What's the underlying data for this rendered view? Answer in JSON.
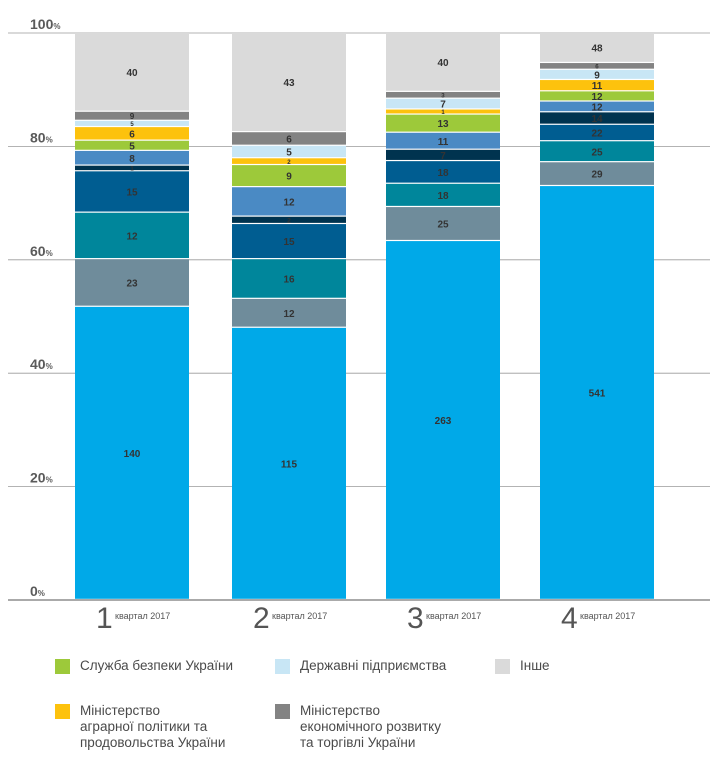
{
  "chart_data": {
    "type": "bar",
    "stacked": true,
    "categories": [
      "1",
      "2",
      "3",
      "4"
    ],
    "category_suffix": "квартал 2017",
    "yticks": [
      "0",
      "20",
      "40",
      "60",
      "80",
      "100"
    ],
    "ytick_suffix": "%",
    "ylim": [
      0,
      100
    ],
    "grid": true,
    "columns": [
      {
        "segments": [
          {
            "value": 140,
            "share": 51.7,
            "color": "#00a9e8"
          },
          {
            "value": 23,
            "share": 8.4,
            "color": "#6f8c9b"
          },
          {
            "value": 12,
            "share": 8.2,
            "color": "#00869b"
          },
          {
            "value": 15,
            "share": 7.3,
            "color": "#005d91"
          },
          {
            "value": 1,
            "share": 1.0,
            "color": "#00334f"
          },
          {
            "value": 8,
            "share": 2.6,
            "color": "#4a8ac4"
          },
          {
            "value": 5,
            "share": 1.8,
            "color": "#9dc93a"
          },
          {
            "value": 6,
            "share": 2.4,
            "color": "#fdc20d"
          },
          {
            "value": 5,
            "share": 1.1,
            "color": "#c8e6f5"
          },
          {
            "value": 9,
            "share": 1.6,
            "color": "#838383"
          },
          {
            "value": 40,
            "share": 13.9,
            "color": "#dadada"
          }
        ]
      },
      {
        "segments": [
          {
            "value": 115,
            "share": 48.0,
            "color": "#00a9e8"
          },
          {
            "value": 12,
            "share": 5.1,
            "color": "#6f8c9b"
          },
          {
            "value": 16,
            "share": 7.0,
            "color": "#00869b"
          },
          {
            "value": 15,
            "share": 6.2,
            "color": "#005d91"
          },
          {
            "value": 2,
            "share": 1.3,
            "color": "#00334f"
          },
          {
            "value": 12,
            "share": 5.2,
            "color": "#4a8ac4"
          },
          {
            "value": 9,
            "share": 3.9,
            "color": "#9dc93a"
          },
          {
            "value": 2,
            "share": 1.2,
            "color": "#fdc20d"
          },
          {
            "value": 5,
            "share": 2.2,
            "color": "#c8e6f5"
          },
          {
            "value": 6,
            "share": 2.4,
            "color": "#838383"
          },
          {
            "value": 43,
            "share": 17.5,
            "color": "#dadada"
          }
        ]
      },
      {
        "segments": [
          {
            "value": 263,
            "share": 63.3,
            "color": "#00a9e8"
          },
          {
            "value": 25,
            "share": 6.0,
            "color": "#6f8c9b"
          },
          {
            "value": 18,
            "share": 4.1,
            "color": "#00869b"
          },
          {
            "value": 18,
            "share": 4.0,
            "color": "#005d91"
          },
          {
            "value": 7,
            "share": 2.0,
            "color": "#00334f"
          },
          {
            "value": 11,
            "share": 3.0,
            "color": "#4a8ac4"
          },
          {
            "value": 13,
            "share": 3.2,
            "color": "#9dc93a"
          },
          {
            "value": 1,
            "share": 0.9,
            "color": "#fdc20d"
          },
          {
            "value": 7,
            "share": 1.9,
            "color": "#c8e6f5"
          },
          {
            "value": 3,
            "share": 1.2,
            "color": "#838383"
          },
          {
            "value": 40,
            "share": 10.4,
            "color": "#dadada"
          }
        ]
      },
      {
        "segments": [
          {
            "value": 541,
            "share": 73.0,
            "color": "#00a9e8"
          },
          {
            "value": 29,
            "share": 4.2,
            "color": "#6f8c9b"
          },
          {
            "value": 25,
            "share": 3.7,
            "color": "#00869b"
          },
          {
            "value": 22,
            "share": 2.9,
            "color": "#005d91"
          },
          {
            "value": 14,
            "share": 2.2,
            "color": "#00334f"
          },
          {
            "value": 12,
            "share": 1.9,
            "color": "#4a8ac4"
          },
          {
            "value": 12,
            "share": 1.8,
            "color": "#9dc93a"
          },
          {
            "value": 11,
            "share": 2.0,
            "color": "#fdc20d"
          },
          {
            "value": 9,
            "share": 1.8,
            "color": "#c8e6f5"
          },
          {
            "value": 6,
            "share": 1.2,
            "color": "#838383"
          },
          {
            "value": 48,
            "share": 5.3,
            "color": "#dadada"
          }
        ]
      }
    ]
  },
  "legend": [
    {
      "label": "Служба безпеки України",
      "color": "#9dc93a"
    },
    {
      "label": "Державні підприємства",
      "color": "#c8e6f5"
    },
    {
      "label": "Інше",
      "color": "#dadada"
    },
    {
      "label": "Міністерство\nаграрної політики та\nпродовольства України",
      "color": "#fdc20d"
    },
    {
      "label": "Міністерство\nекономічного розвитку\nта торгівлі України",
      "color": "#838383"
    }
  ]
}
